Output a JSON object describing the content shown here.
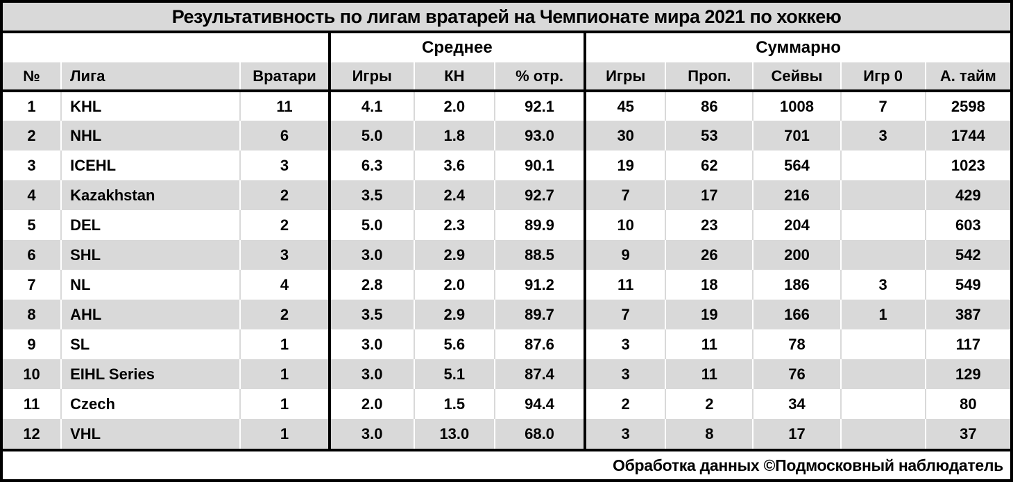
{
  "title": "Результативность по лигам вратарей на Чемпионате мира 2021 по хоккею",
  "footer": "Обработка данных ©Подмосковный наблюдатель",
  "colors": {
    "stripe_fill": "#d9d9d9",
    "header_fill": "#d9d9d9",
    "title_fill": "#d9d9d9",
    "border": "#000000",
    "grid_on_white": "#d9d9d9",
    "grid_on_gray": "#ffffff",
    "text": "#000000"
  },
  "table": {
    "groups": {
      "average": "Среднее",
      "total": "Суммарно"
    },
    "columns": [
      "№",
      "Лига",
      "Вратари",
      "Игры",
      "КН",
      "% отр.",
      "Игры",
      "Проп.",
      "Сейвы",
      "Игр 0",
      "А. тайм"
    ],
    "rows": [
      [
        "1",
        "KHL",
        "11",
        "4.1",
        "2.0",
        "92.1",
        "45",
        "86",
        "1008",
        "7",
        "2598"
      ],
      [
        "2",
        "NHL",
        "6",
        "5.0",
        "1.8",
        "93.0",
        "30",
        "53",
        "701",
        "3",
        "1744"
      ],
      [
        "3",
        "ICEHL",
        "3",
        "6.3",
        "3.6",
        "90.1",
        "19",
        "62",
        "564",
        "",
        "1023"
      ],
      [
        "4",
        "Kazakhstan",
        "2",
        "3.5",
        "2.4",
        "92.7",
        "7",
        "17",
        "216",
        "",
        "429"
      ],
      [
        "5",
        "DEL",
        "2",
        "5.0",
        "2.3",
        "89.9",
        "10",
        "23",
        "204",
        "",
        "603"
      ],
      [
        "6",
        "SHL",
        "3",
        "3.0",
        "2.9",
        "88.5",
        "9",
        "26",
        "200",
        "",
        "542"
      ],
      [
        "7",
        "NL",
        "4",
        "2.8",
        "2.0",
        "91.2",
        "11",
        "18",
        "186",
        "3",
        "549"
      ],
      [
        "8",
        "AHL",
        "2",
        "3.5",
        "2.9",
        "89.7",
        "7",
        "19",
        "166",
        "1",
        "387"
      ],
      [
        "9",
        "SL",
        "1",
        "3.0",
        "5.6",
        "87.6",
        "3",
        "11",
        "78",
        "",
        "117"
      ],
      [
        "10",
        "EIHL Series",
        "1",
        "3.0",
        "5.1",
        "87.4",
        "3",
        "11",
        "76",
        "",
        "129"
      ],
      [
        "11",
        "Czech",
        "1",
        "2.0",
        "1.5",
        "94.4",
        "2",
        "2",
        "34",
        "",
        "80"
      ],
      [
        "12",
        "VHL",
        "1",
        "3.0",
        "13.0",
        "68.0",
        "3",
        "8",
        "17",
        "",
        "37"
      ]
    ]
  },
  "chart_data": {
    "type": "table",
    "title": "Результативность по лигам вратарей на Чемпионате мира 2021 по хоккею",
    "column_groups": [
      {
        "label": "",
        "span": 3
      },
      {
        "label": "Среднее",
        "span": 3
      },
      {
        "label": "Суммарно",
        "span": 5
      }
    ],
    "columns": [
      "№",
      "Лига",
      "Вратари",
      "Игры (среднее)",
      "КН",
      "% отр.",
      "Игры (суммарно)",
      "Проп.",
      "Сейвы",
      "Игр 0",
      "А. тайм"
    ],
    "rows": [
      [
        1,
        "KHL",
        11,
        4.1,
        2.0,
        92.1,
        45,
        86,
        1008,
        7,
        2598
      ],
      [
        2,
        "NHL",
        6,
        5.0,
        1.8,
        93.0,
        30,
        53,
        701,
        3,
        1744
      ],
      [
        3,
        "ICEHL",
        3,
        6.3,
        3.6,
        90.1,
        19,
        62,
        564,
        null,
        1023
      ],
      [
        4,
        "Kazakhstan",
        2,
        3.5,
        2.4,
        92.7,
        7,
        17,
        216,
        null,
        429
      ],
      [
        5,
        "DEL",
        2,
        5.0,
        2.3,
        89.9,
        10,
        23,
        204,
        null,
        603
      ],
      [
        6,
        "SHL",
        3,
        3.0,
        2.9,
        88.5,
        9,
        26,
        200,
        null,
        542
      ],
      [
        7,
        "NL",
        4,
        2.8,
        2.0,
        91.2,
        11,
        18,
        186,
        3,
        549
      ],
      [
        8,
        "AHL",
        2,
        3.5,
        2.9,
        89.7,
        7,
        19,
        166,
        1,
        387
      ],
      [
        9,
        "SL",
        1,
        3.0,
        5.6,
        87.6,
        3,
        11,
        78,
        null,
        117
      ],
      [
        10,
        "EIHL Series",
        1,
        3.0,
        5.1,
        87.4,
        3,
        11,
        76,
        null,
        129
      ],
      [
        11,
        "Czech",
        1,
        2.0,
        1.5,
        94.4,
        2,
        2,
        34,
        null,
        80
      ],
      [
        12,
        "VHL",
        1,
        3.0,
        13.0,
        68.0,
        3,
        8,
        17,
        null,
        37
      ]
    ],
    "credit": "Обработка данных ©Подмосковный наблюдатель"
  }
}
